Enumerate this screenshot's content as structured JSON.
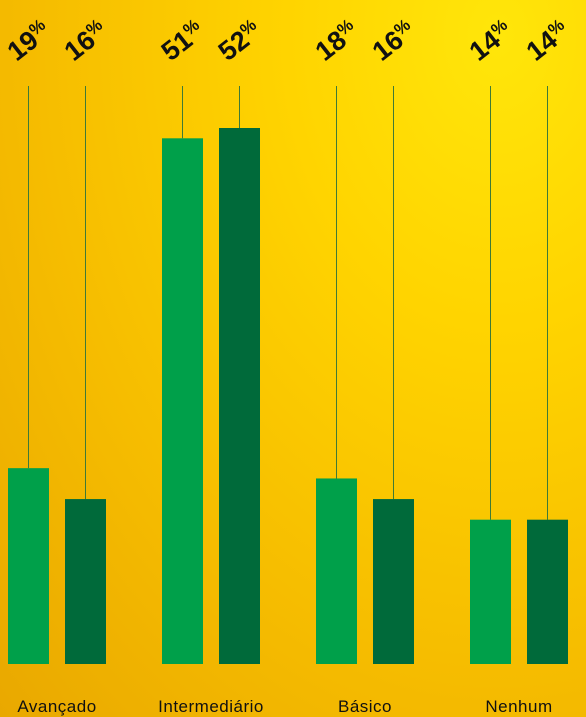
{
  "chart_data": {
    "type": "bar",
    "categories": [
      "Avançado",
      "Intermediário",
      "Básico",
      "Nenhum"
    ],
    "series": [
      {
        "values": [
          19,
          51,
          18,
          14
        ],
        "color": "#00a04a"
      },
      {
        "values": [
          16,
          52,
          16,
          14
        ],
        "color": "#006a3a"
      }
    ],
    "value_suffix": "%",
    "ylim": [
      0,
      52
    ],
    "grid": false,
    "legend": "none",
    "guide_line_color": "#3f7a36"
  }
}
